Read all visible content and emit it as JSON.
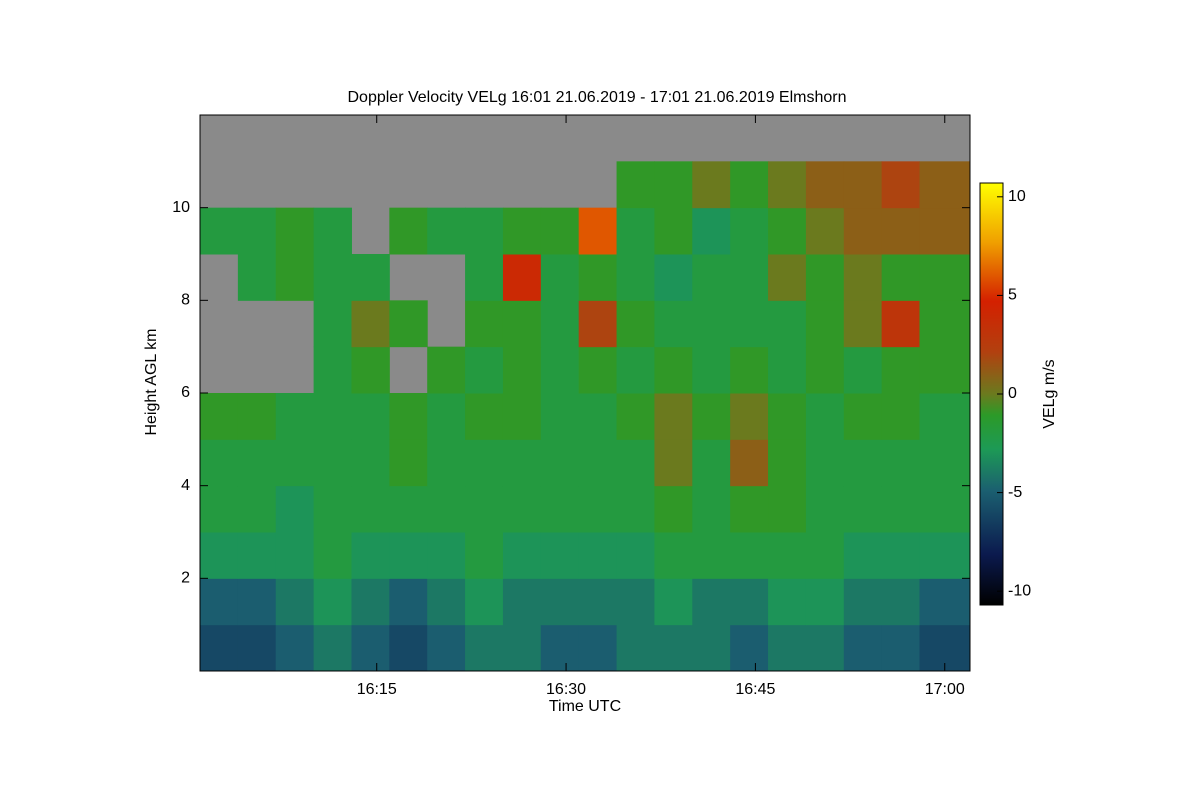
{
  "chart_data": {
    "type": "heatmap",
    "title": "Doppler Velocity VELg   16:01 21.06.2019 - 17:01 21.06.2019 Elmshorn",
    "x_label": "Time UTC",
    "y_label": "Height AGL km",
    "colorbar_label": "VELg m/s",
    "x": [
      "16:01",
      "16:04",
      "16:07",
      "16:10",
      "16:13",
      "16:16",
      "16:19",
      "16:22",
      "16:25",
      "16:28",
      "16:31",
      "16:34",
      "16:37",
      "16:40",
      "16:43",
      "16:46",
      "16:49",
      "16:52",
      "16:55",
      "16:58"
    ],
    "xlim": [
      "16:01",
      "17:02"
    ],
    "xticks": [
      "16:15",
      "16:30",
      "16:45",
      "17:00"
    ],
    "y": [
      0,
      1,
      2,
      3,
      4,
      5,
      6,
      7,
      8,
      9,
      10,
      11
    ],
    "ylim": [
      0,
      12
    ],
    "yticks": [
      2,
      4,
      6,
      8,
      10
    ],
    "zlim": [
      -10.7,
      10.7
    ],
    "zticks": [
      10,
      5,
      0,
      -5,
      -10
    ],
    "z": [
      [
        -6,
        -6,
        -5,
        -4,
        -5,
        -6,
        -5,
        -4,
        -4,
        -5,
        -5,
        -4,
        -4,
        -4,
        -5,
        -4,
        -4,
        -5,
        -5,
        -6
      ],
      [
        -5,
        -5,
        -4,
        -3,
        -4,
        -5,
        -4,
        -3,
        -4,
        -4,
        -4,
        -4,
        -3,
        -4,
        -4,
        -3,
        -3,
        -4,
        -4,
        -5
      ],
      [
        -3,
        -3,
        -3,
        -2,
        -3,
        -3,
        -3,
        -2,
        -3,
        -3,
        -3,
        -3,
        -2,
        -2,
        -2,
        -2,
        -2,
        -3,
        -3,
        -3
      ],
      [
        -2,
        -2,
        -3,
        -2,
        -2,
        -2,
        -2,
        -2,
        -2,
        -2,
        -2,
        -2,
        -1,
        -2,
        -1,
        -1,
        -2,
        -2,
        -2,
        -2
      ],
      [
        -2,
        -2,
        -2,
        -2,
        -2,
        -1,
        -2,
        -2,
        -2,
        -2,
        -2,
        -2,
        0,
        -2,
        1,
        -1,
        -2,
        -2,
        -2,
        -2
      ],
      [
        -1,
        -1,
        -2,
        -2,
        -2,
        -1,
        -2,
        -1,
        -1,
        -2,
        -2,
        -1,
        0,
        -1,
        0,
        -1,
        -2,
        -1,
        -1,
        -2
      ],
      [
        null,
        null,
        null,
        -2,
        -1,
        null,
        -1,
        -2,
        -1,
        -2,
        -1,
        -2,
        -1,
        -2,
        -1,
        -2,
        -1,
        -2,
        -1,
        -1
      ],
      [
        null,
        null,
        null,
        -2,
        0,
        -1,
        null,
        -1,
        -1,
        -2,
        2,
        -1,
        -2,
        -2,
        -2,
        -2,
        -1,
        0,
        3,
        -1
      ],
      [
        null,
        -2,
        -1,
        -2,
        -2,
        null,
        null,
        -2,
        4,
        -2,
        -1,
        -2,
        -3,
        -2,
        -2,
        0,
        -1,
        0,
        -1,
        -1
      ],
      [
        -2,
        -2,
        -1,
        -2,
        null,
        -1,
        -2,
        -2,
        -1,
        -1,
        6,
        -2,
        -1,
        -3,
        -2,
        -1,
        0,
        1,
        1,
        1
      ],
      [
        null,
        null,
        null,
        null,
        null,
        null,
        null,
        null,
        null,
        null,
        null,
        -1,
        -1,
        0,
        -1,
        0,
        1,
        1,
        2,
        1
      ],
      [
        null,
        null,
        null,
        null,
        null,
        null,
        null,
        null,
        null,
        null,
        null,
        null,
        null,
        null,
        null,
        null,
        null,
        null,
        null,
        null
      ]
    ]
  }
}
